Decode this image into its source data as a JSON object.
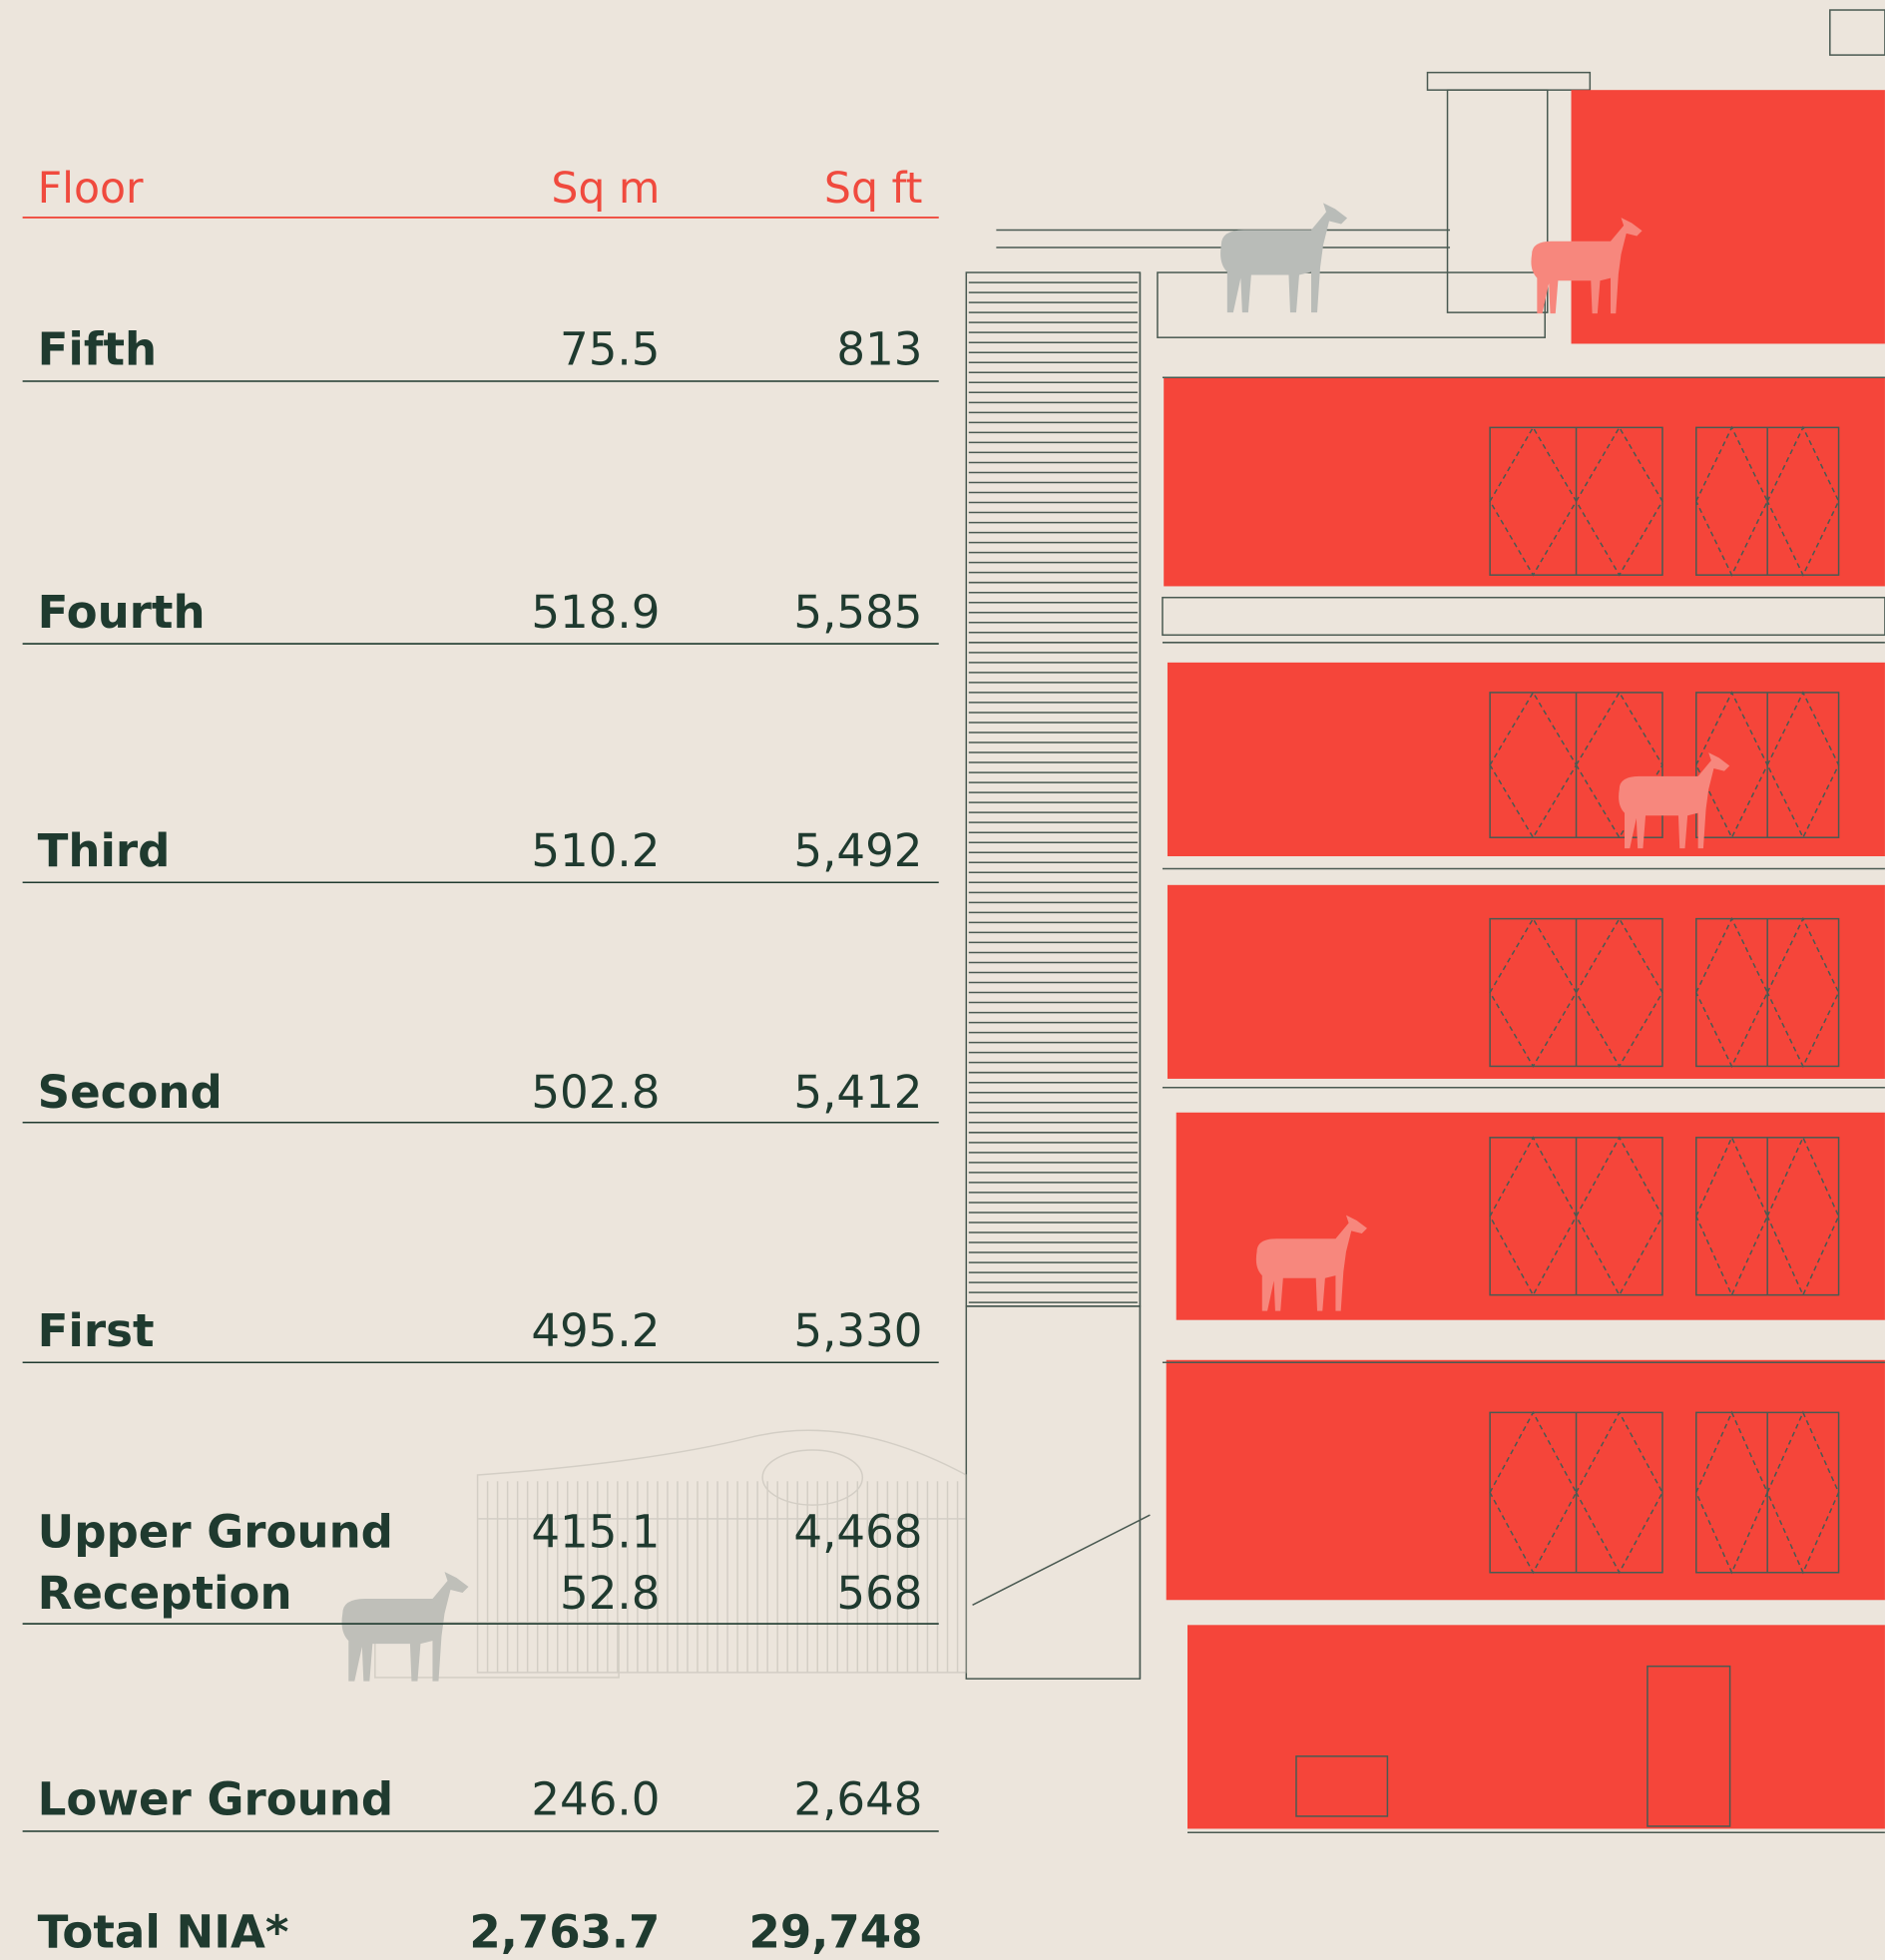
{
  "table": {
    "header": [
      "Floor",
      "Sq m",
      "Sq ft"
    ],
    "rows": [
      [
        "Fifth",
        "75.5",
        "813"
      ],
      [
        "Fourth",
        "518.9",
        "5,585"
      ],
      [
        "Third",
        "510.2",
        "5,492"
      ],
      [
        "Second",
        "502.8",
        "5,412"
      ],
      [
        "First",
        "495.2",
        "5,330"
      ],
      [
        "Upper Ground",
        "415.1",
        "4,468"
      ],
      [
        "Reception",
        "52.8",
        "568"
      ],
      [
        "Lower Ground",
        "246.0",
        "2,648"
      ]
    ],
    "total": [
      "Total NIA*",
      "2,763.7",
      "29,748"
    ]
  }
}
